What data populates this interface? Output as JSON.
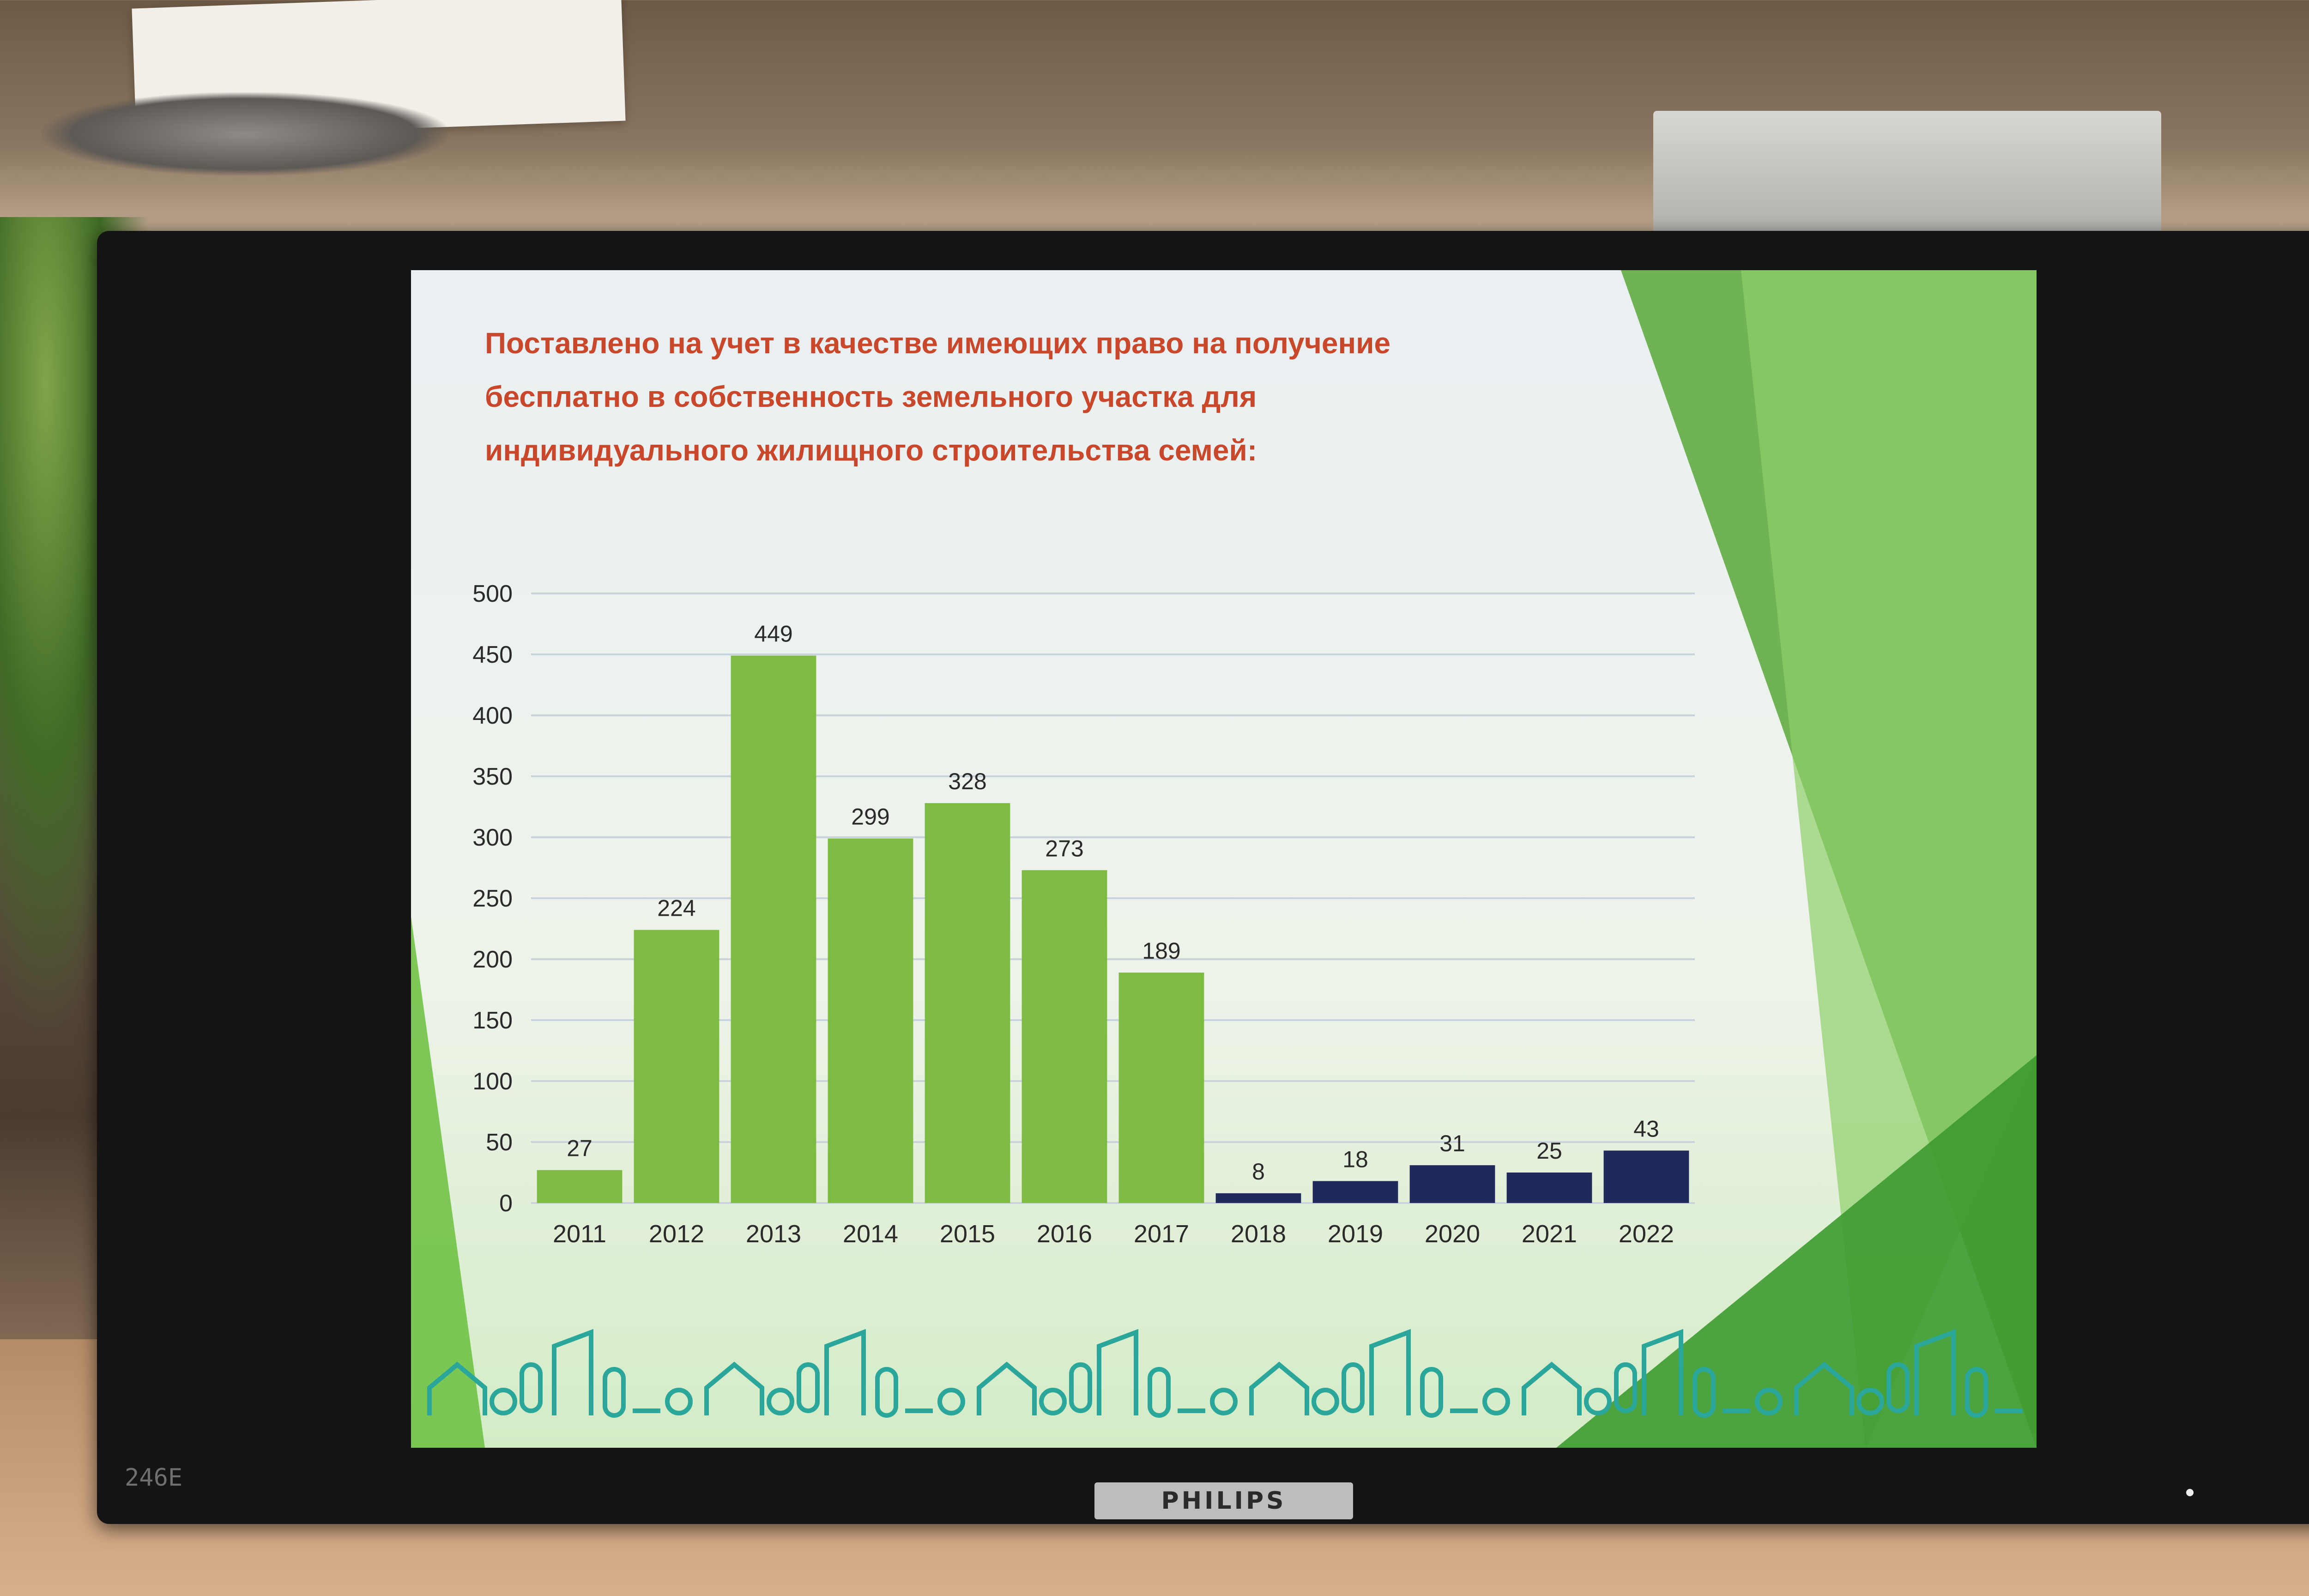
{
  "scene": {
    "monitor_brand": "PHILIPS",
    "monitor_model": "246E"
  },
  "slide": {
    "title_lines": [
      "Поставлено на учет в качестве имеющих право на получение",
      "бесплатно в собственность земельного участка для",
      "индивидуального жилищного строительства семей:"
    ],
    "colors": {
      "title": "#c9482b",
      "bars_early": "#7dbb42",
      "bars_late": "#1f2a5a",
      "decor_green": "#5aa83a"
    }
  },
  "chart_data": {
    "type": "bar",
    "title": "Поставлено на учет в качестве имеющих право на получение бесплатно в собственность земельного участка для индивидуального жилищного строительства семей:",
    "categories": [
      "2011",
      "2012",
      "2013",
      "2014",
      "2015",
      "2016",
      "2017",
      "2018",
      "2019",
      "2020",
      "2021",
      "2022"
    ],
    "values": [
      27,
      224,
      449,
      299,
      328,
      273,
      189,
      8,
      18,
      31,
      25,
      43
    ],
    "value_labels": [
      "27",
      "224",
      "449",
      "299",
      "328",
      "273",
      "189",
      "8",
      "18",
      "31",
      "25",
      "43"
    ],
    "bar_colors": [
      "#7dbb42",
      "#7dbb42",
      "#7dbb42",
      "#7dbb42",
      "#7dbb42",
      "#7dbb42",
      "#7dbb42",
      "#1f2a5a",
      "#1f2a5a",
      "#1f2a5a",
      "#1f2a5a",
      "#1f2a5a"
    ],
    "y_ticks": [
      "0",
      "50",
      "100",
      "150",
      "200",
      "250",
      "300",
      "350",
      "400",
      "450",
      "500"
    ],
    "ylim": [
      0,
      500
    ],
    "grid": true,
    "xlabel": "",
    "ylabel": ""
  }
}
